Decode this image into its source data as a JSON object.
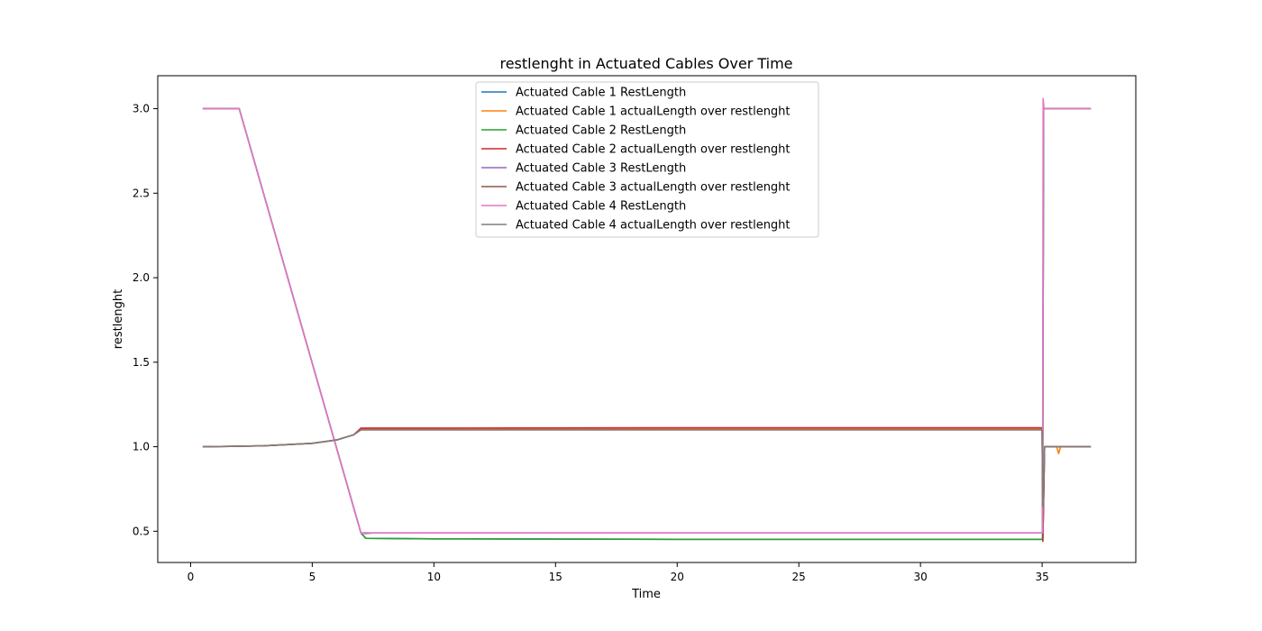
{
  "chart_data": {
    "type": "line",
    "title": "restlenght in Actuated Cables Over Time",
    "xlabel": "Time",
    "ylabel": "restlenght",
    "xlim": [
      -1.35,
      38.85
    ],
    "ylim": [
      0.315,
      3.195
    ],
    "xticks": [
      0,
      5,
      10,
      15,
      20,
      25,
      30,
      35
    ],
    "yticks": [
      0.5,
      1.0,
      1.5,
      2.0,
      2.5,
      3.0
    ],
    "xtick_labels": [
      "0",
      "5",
      "10",
      "15",
      "20",
      "25",
      "30",
      "35"
    ],
    "ytick_labels": [
      "0.5",
      "1.0",
      "1.5",
      "2.0",
      "2.5",
      "3.0"
    ],
    "grid": false,
    "legend_position": "upper center",
    "series": [
      {
        "name": "Actuated Cable 1 RestLength",
        "color": "#1f77b4",
        "x": [
          0.5,
          2.0,
          7.0,
          7.2,
          10,
          20,
          35.0,
          35.02,
          35.06,
          37
        ],
        "y": [
          3.0,
          3.0,
          0.49,
          0.458,
          0.455,
          0.452,
          0.452,
          0.45,
          3.0,
          3.0
        ]
      },
      {
        "name": "Actuated Cable 1 actualLength over restlenght",
        "color": "#ff7f0e",
        "x": [
          0.5,
          3,
          5,
          6,
          6.7,
          7.0,
          10,
          20,
          35.0,
          35.03,
          35.1,
          35.6,
          35.68,
          35.76,
          37
        ],
        "y": [
          1.0,
          1.005,
          1.02,
          1.04,
          1.07,
          1.105,
          1.107,
          1.107,
          1.107,
          0.46,
          1.0,
          1.0,
          0.96,
          1.0,
          1.0
        ]
      },
      {
        "name": "Actuated Cable 2 RestLength",
        "color": "#2ca02c",
        "x": [
          0.5,
          2.0,
          7.0,
          7.2,
          10,
          20,
          35.0,
          35.02,
          35.06,
          37
        ],
        "y": [
          3.0,
          3.0,
          0.49,
          0.458,
          0.455,
          0.452,
          0.452,
          0.45,
          3.0,
          3.0
        ]
      },
      {
        "name": "Actuated Cable 2 actualLength over restlenght",
        "color": "#d62728",
        "x": [
          0.5,
          3,
          5,
          6,
          6.7,
          7.0,
          10,
          20,
          35.0,
          35.03,
          35.1,
          37
        ],
        "y": [
          1.0,
          1.005,
          1.02,
          1.04,
          1.07,
          1.11,
          1.11,
          1.112,
          1.112,
          0.44,
          1.0,
          1.0
        ]
      },
      {
        "name": "Actuated Cable 3 RestLength",
        "color": "#9467bd",
        "x": [
          0.5,
          2.0,
          7.0,
          7.3,
          10,
          20,
          35.0,
          35.02,
          35.06,
          37
        ],
        "y": [
          3.0,
          3.0,
          0.49,
          0.49,
          0.49,
          0.49,
          0.49,
          0.49,
          3.0,
          3.0
        ]
      },
      {
        "name": "Actuated Cable 3 actualLength over restlenght",
        "color": "#8c564b",
        "x": [
          0.5,
          3,
          5,
          6,
          6.7,
          7.0,
          10,
          20,
          35.0,
          35.03,
          35.1,
          37
        ],
        "y": [
          1.0,
          1.005,
          1.02,
          1.04,
          1.07,
          1.1,
          1.1,
          1.1,
          1.1,
          0.45,
          1.0,
          1.0
        ]
      },
      {
        "name": "Actuated Cable 4 RestLength",
        "color": "#e377c2",
        "x": [
          0.5,
          2.0,
          7.0,
          7.2,
          7.5,
          10,
          20,
          35.0,
          35.02,
          35.04,
          35.08,
          37
        ],
        "y": [
          3.0,
          3.0,
          0.49,
          0.485,
          0.49,
          0.49,
          0.49,
          0.49,
          0.49,
          3.06,
          3.0,
          3.0
        ]
      },
      {
        "name": "Actuated Cable 4 actualLength over restlenght",
        "color": "#7f7f7f",
        "x": [
          0.5,
          3,
          5,
          6,
          6.7,
          7.0,
          10,
          20,
          35.0,
          35.03,
          35.1,
          37
        ],
        "y": [
          1.0,
          1.005,
          1.02,
          1.04,
          1.07,
          1.1,
          1.1,
          1.1,
          1.1,
          0.65,
          1.0,
          1.0
        ]
      }
    ]
  }
}
